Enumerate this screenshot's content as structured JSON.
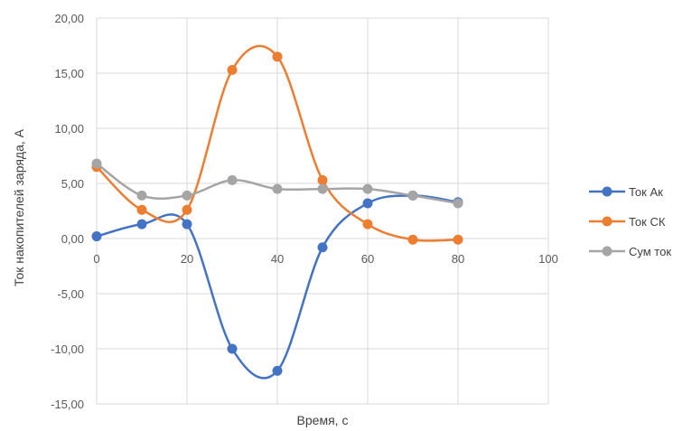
{
  "chart_data": {
    "type": "line",
    "title": "",
    "xlabel": "Время,  с",
    "ylabel": "Ток накопителей заряда, А",
    "xlim": [
      0,
      100
    ],
    "ylim": [
      -15,
      20
    ],
    "x_ticks": [
      "0",
      "20",
      "40",
      "60",
      "80",
      "100"
    ],
    "y_ticks": [
      "20,00",
      "15,00",
      "10,00",
      "5,00",
      "0,00",
      "-5,00",
      "-10,00",
      "-15,00"
    ],
    "grid": true,
    "smooth": true,
    "legend_position": "right",
    "series": [
      {
        "name": "Ток Ак",
        "color": "#4472c4",
        "x": [
          0,
          10,
          20,
          30,
          40,
          50,
          60,
          70,
          80
        ],
        "y": [
          0.2,
          1.3,
          1.3,
          -10.0,
          -12.0,
          -0.8,
          3.2,
          3.9,
          3.3
        ]
      },
      {
        "name": "Ток СК",
        "color": "#ed7d31",
        "x": [
          0,
          10,
          20,
          30,
          40,
          50,
          60,
          70,
          80
        ],
        "y": [
          6.5,
          2.6,
          2.6,
          15.3,
          16.5,
          5.3,
          1.3,
          -0.1,
          -0.1
        ]
      },
      {
        "name": "Сум ток",
        "color": "#a5a5a5",
        "x": [
          0,
          10,
          20,
          30,
          40,
          50,
          60,
          70,
          80
        ],
        "y": [
          6.8,
          3.9,
          3.9,
          5.3,
          4.5,
          4.5,
          4.5,
          3.9,
          3.2
        ]
      }
    ]
  }
}
